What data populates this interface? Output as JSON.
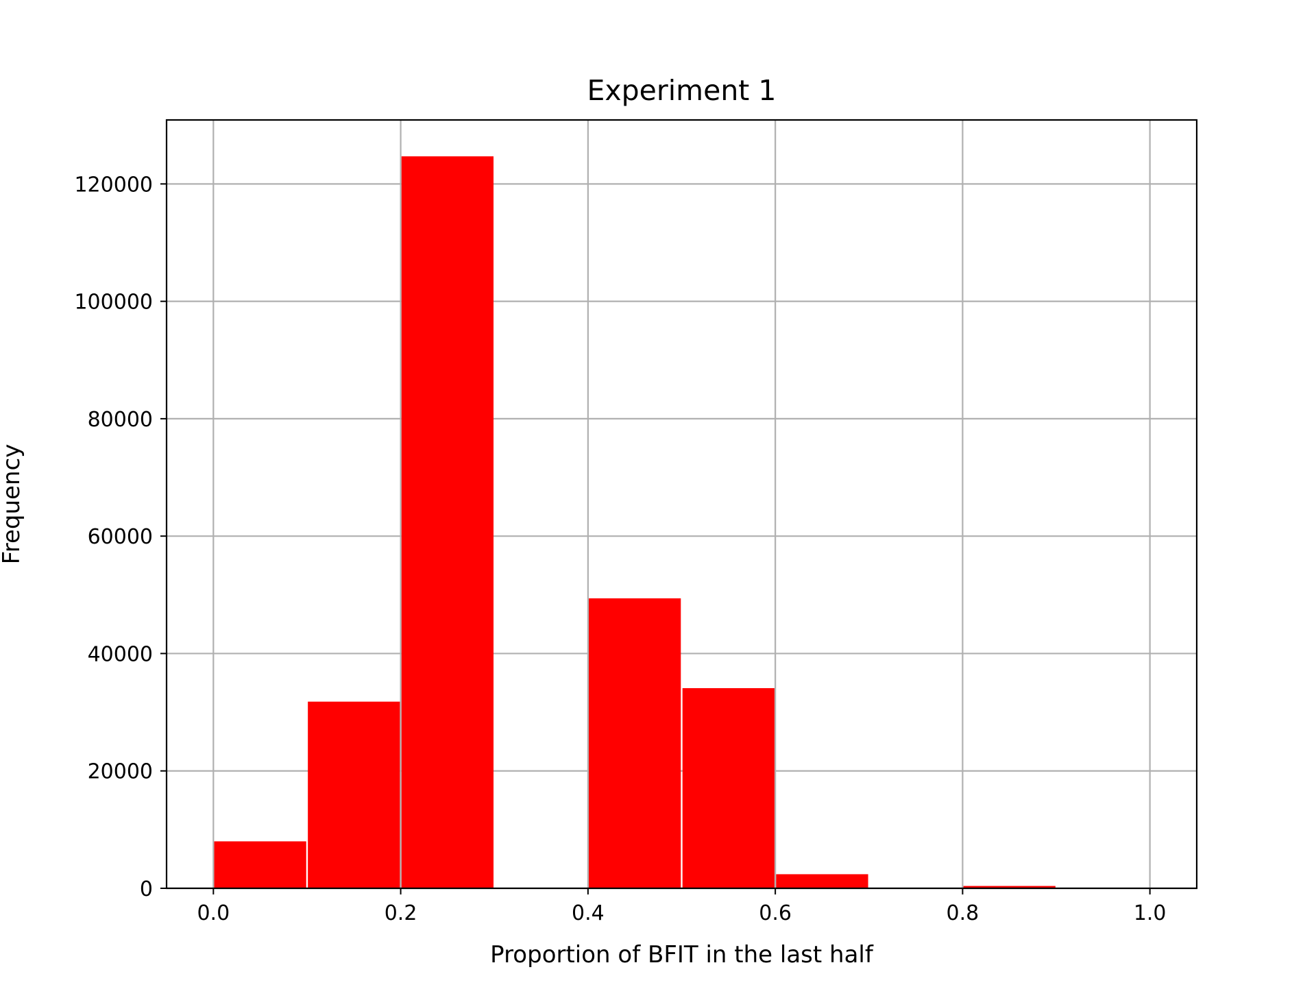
{
  "chart_data": {
    "type": "bar",
    "title": "Experiment 1",
    "xlabel": "Proportion of BFIT in the last half",
    "ylabel": "Frequency",
    "bin_edges": [
      0.0,
      0.1,
      0.2,
      0.3,
      0.4,
      0.5,
      0.6,
      0.7,
      0.8,
      0.9,
      1.0
    ],
    "values": [
      8000,
      31800,
      124700,
      0,
      49400,
      34100,
      2400,
      0,
      400,
      0
    ],
    "xlim": [
      -0.05,
      1.05
    ],
    "ylim": [
      0,
      130900
    ],
    "xticks": [
      0.0,
      0.2,
      0.4,
      0.6,
      0.8,
      1.0
    ],
    "xtick_labels": [
      "0.0",
      "0.2",
      "0.4",
      "0.6",
      "0.8",
      "1.0"
    ],
    "yticks": [
      0,
      20000,
      40000,
      60000,
      80000,
      100000,
      120000
    ],
    "ytick_labels": [
      "0",
      "20000",
      "40000",
      "60000",
      "80000",
      "100000",
      "120000"
    ],
    "grid": true,
    "colors": {
      "bar": "#ff0000",
      "grid": "#b0b0b0",
      "frame": "#000000"
    }
  }
}
